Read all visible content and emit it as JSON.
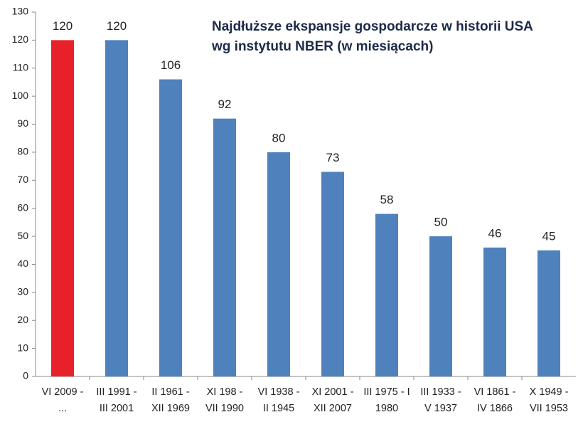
{
  "chart_data": {
    "type": "bar",
    "title": "Najdłuższe ekspansje gospodarcze w historii USA\nwg instytutu NBER (w miesiącach)",
    "categories": [
      "VI 2009 -\n...",
      "III 1991 -\nIII 2001",
      "II 1961 -\nXII 1969",
      "XI 198 -\nVII 1990",
      "VI 1938 -\nII 1945",
      "XI 2001 -\nXII 2007",
      "III 1975 - I\n1980",
      "III 1933 -\nV 1937",
      "VI 1861 -\nIV 1866",
      "X 1949 -\nVII 1953"
    ],
    "values": [
      120,
      120,
      106,
      92,
      80,
      73,
      58,
      50,
      46,
      45
    ],
    "colors": [
      "#e8202a",
      "#4f81bd",
      "#4f81bd",
      "#4f81bd",
      "#4f81bd",
      "#4f81bd",
      "#4f81bd",
      "#4f81bd",
      "#4f81bd",
      "#4f81bd"
    ],
    "ylim": [
      0,
      130
    ],
    "yticks": [
      0,
      10,
      20,
      30,
      40,
      50,
      60,
      70,
      80,
      90,
      100,
      110,
      120,
      130
    ],
    "grid": false
  }
}
